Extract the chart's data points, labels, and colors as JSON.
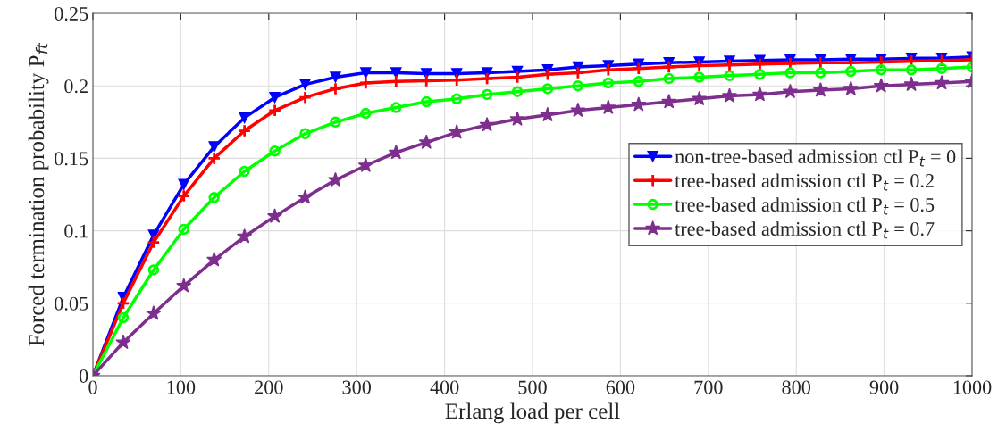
{
  "chart_data": {
    "type": "line",
    "xlabel": "Erlang load per cell",
    "ylabel": "Forced termination probability P$_{ft}$",
    "x": [
      0,
      34.5,
      69,
      103.4,
      137.9,
      172.4,
      206.9,
      241.4,
      275.9,
      310.3,
      344.8,
      379.3,
      413.8,
      448.3,
      482.8,
      517.2,
      551.7,
      586.2,
      620.7,
      655.2,
      689.7,
      724.1,
      758.6,
      793.1,
      827.6,
      862.1,
      896.6,
      931,
      965.5,
      1000
    ],
    "series": [
      {
        "name": "non-tree-based admission ctl P$_{t}$ = 0",
        "color": "#0000ff",
        "marker": "triangle",
        "values": [
          0,
          0.054,
          0.097,
          0.132,
          0.158,
          0.178,
          0.192,
          0.201,
          0.206,
          0.209,
          0.209,
          0.2085,
          0.2085,
          0.209,
          0.21,
          0.211,
          0.213,
          0.214,
          0.215,
          0.216,
          0.2165,
          0.217,
          0.2175,
          0.218,
          0.218,
          0.2185,
          0.2185,
          0.219,
          0.219,
          0.22
        ]
      },
      {
        "name": "tree-based admission ctl P$_{t}$ = 0.2",
        "color": "#ff0000",
        "marker": "cross",
        "values": [
          0,
          0.05,
          0.092,
          0.124,
          0.15,
          0.169,
          0.183,
          0.192,
          0.198,
          0.202,
          0.203,
          0.2035,
          0.204,
          0.205,
          0.206,
          0.208,
          0.209,
          0.211,
          0.212,
          0.213,
          0.214,
          0.2145,
          0.215,
          0.2155,
          0.216,
          0.216,
          0.2165,
          0.217,
          0.2175,
          0.218
        ]
      },
      {
        "name": "tree-based admission ctl P$_{t}$ = 0.5",
        "color": "#00ff00",
        "marker": "circle",
        "values": [
          0,
          0.04,
          0.073,
          0.101,
          0.123,
          0.141,
          0.155,
          0.167,
          0.175,
          0.181,
          0.185,
          0.189,
          0.191,
          0.194,
          0.196,
          0.198,
          0.2,
          0.202,
          0.203,
          0.205,
          0.206,
          0.207,
          0.208,
          0.209,
          0.209,
          0.21,
          0.211,
          0.211,
          0.212,
          0.213
        ]
      },
      {
        "name": "tree-based admission ctl P$_{t}$ = 0.7",
        "color": "#7e2f8e",
        "marker": "star",
        "values": [
          0,
          0.023,
          0.043,
          0.062,
          0.08,
          0.096,
          0.11,
          0.123,
          0.135,
          0.145,
          0.154,
          0.161,
          0.168,
          0.173,
          0.177,
          0.18,
          0.183,
          0.185,
          0.187,
          0.189,
          0.191,
          0.193,
          0.194,
          0.196,
          0.197,
          0.198,
          0.2,
          0.201,
          0.202,
          0.203
        ]
      }
    ],
    "xlim": [
      0,
      1000
    ],
    "xticks": [
      0,
      100,
      200,
      300,
      400,
      500,
      600,
      700,
      800,
      900,
      1000
    ],
    "ylim": [
      0,
      0.25
    ],
    "yticks": [
      0,
      0.05,
      0.1,
      0.15,
      0.2,
      0.25
    ],
    "grid": true,
    "legend": "right",
    "line_style": "solid"
  }
}
